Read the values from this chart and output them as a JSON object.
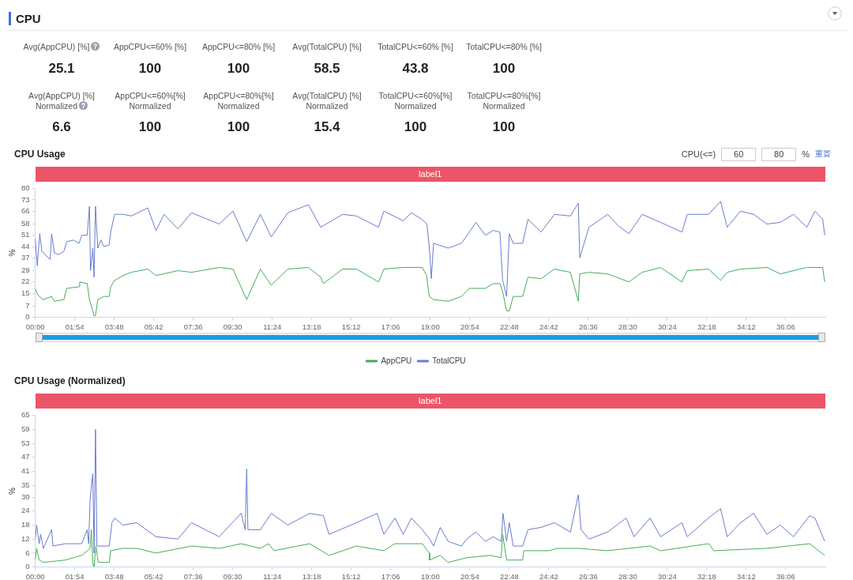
{
  "chart_data": [
    {
      "type": "other",
      "title": "CPU",
      "categories": [
        "Avg(AppCPU) [%]",
        "AppCPU<=60% [%]",
        "AppCPU<=80% [%]",
        "Avg(TotalCPU) [%]",
        "TotalCPU<=60% [%]",
        "TotalCPU<=80% [%]",
        "Avg(AppCPU) [%]\nNormalized",
        "AppCPU<=60%[%]\nNormalized",
        "AppCPU<=80%[%]\nNormalized",
        "Avg(TotalCPU) [%]\nNormalized",
        "TotalCPU<=60%[%]\nNormalized",
        "TotalCPU<=80%[%]\nNormalized"
      ],
      "values": [
        25.1,
        100,
        100,
        58.5,
        43.8,
        100,
        6.6,
        100,
        100,
        15.4,
        100,
        100
      ],
      "data_labels": true
    },
    {
      "type": "line",
      "title": "CPU Usage",
      "ylabel": "%",
      "annotations": [
        "label1",
        "CPU(<=)",
        "60",
        "80",
        "%",
        "重置"
      ],
      "legend": "bottom",
      "marker": "none",
      "line_style": "solid",
      "xlim": [
        0,
        38
      ],
      "xticks": [
        {
          "value": 0,
          "label": "00:00"
        },
        {
          "value": 1.9,
          "label": "01:54"
        },
        {
          "value": 3.8,
          "label": "03:48"
        },
        {
          "value": 5.7,
          "label": "05:42"
        },
        {
          "value": 7.6,
          "label": "07:36"
        },
        {
          "value": 9.5,
          "label": "09:30"
        },
        {
          "value": 11.4,
          "label": "11:24"
        },
        {
          "value": 13.3,
          "label": "13:18"
        },
        {
          "value": 15.2,
          "label": "15:12"
        },
        {
          "value": 17.1,
          "label": "17:06"
        },
        {
          "value": 19,
          "label": "19:00"
        },
        {
          "value": 20.9,
          "label": "20:54"
        },
        {
          "value": 22.8,
          "label": "22:48"
        },
        {
          "value": 24.7,
          "label": "24:42"
        },
        {
          "value": 26.6,
          "label": "26:36"
        },
        {
          "value": 28.5,
          "label": "28:30"
        },
        {
          "value": 30.4,
          "label": "30:24"
        },
        {
          "value": 32.3,
          "label": "32:18"
        },
        {
          "value": 34.2,
          "label": "34:12"
        },
        {
          "value": 36.1,
          "label": "36:06"
        }
      ],
      "ylim": [
        0,
        80
      ],
      "yticks": [
        0,
        7,
        15,
        22,
        29,
        37,
        44,
        51,
        58,
        66,
        73,
        80
      ],
      "series": [
        {
          "name": "AppCPU",
          "color": "#41ad58",
          "x": [
            0,
            0.12,
            0.38,
            0.79,
            0.92,
            1.38,
            1.51,
            2.11,
            2.14,
            2.5,
            2.61,
            2.77,
            2.83,
            2.9,
            3.01,
            3.3,
            3.56,
            3.63,
            3.82,
            4.22,
            4.62,
            5.41,
            5.81,
            6.86,
            7.52,
            8.85,
            9.51,
            10.17,
            10.83,
            11.35,
            12.15,
            13.14,
            13.73,
            13.86,
            14.79,
            15.45,
            16.51,
            16.77,
            17.7,
            18.62,
            18.82,
            18.95,
            19.16,
            19.86,
            20.5,
            20.88,
            21.65,
            22.03,
            22.35,
            22.48,
            22.67,
            22.8,
            22.99,
            23.44,
            23.7,
            24.33,
            24.97,
            25.74,
            26.12,
            26.19,
            26.63,
            27.53,
            28.55,
            29.19,
            30.08,
            31.1,
            31.36,
            32.38,
            32.96,
            33.28,
            33.92,
            35.19,
            35.83,
            37.11,
            37.87,
            37.97
          ],
          "values": [
            18,
            14,
            11,
            13,
            10,
            11,
            18,
            19,
            22,
            21,
            11,
            4,
            1,
            1,
            11,
            13,
            13,
            19,
            23,
            26,
            28,
            30,
            26,
            29,
            28,
            31,
            30,
            11,
            30,
            20,
            30,
            31,
            25,
            21,
            30,
            30,
            22,
            30,
            31,
            31,
            26,
            13,
            11,
            10,
            13,
            18,
            18,
            21,
            21,
            16,
            4,
            4,
            13,
            13,
            25,
            24,
            30,
            28,
            10,
            27,
            28,
            27,
            22,
            28,
            31,
            22,
            29,
            30,
            23,
            28,
            30,
            31,
            27,
            31,
            31,
            22
          ]
        },
        {
          "name": "TotalCPU",
          "color": "#6a7bcf",
          "x": [
            0,
            0.1,
            0.22,
            0.32,
            0.72,
            0.79,
            0.92,
            1.12,
            1.38,
            1.51,
            1.84,
            2.11,
            2.24,
            2.5,
            2.61,
            2.66,
            2.77,
            2.83,
            2.9,
            3.01,
            3.16,
            3.3,
            3.56,
            3.63,
            3.82,
            4.22,
            4.62,
            5.41,
            5.81,
            6.2,
            6.86,
            7.52,
            8.85,
            9.51,
            10.17,
            10.83,
            11.35,
            12.15,
            13.14,
            13.73,
            14.79,
            15.45,
            16.51,
            16.77,
            17.7,
            18.09,
            18.58,
            18.84,
            18.97,
            19.05,
            19.16,
            19.86,
            20.5,
            20.88,
            21.2,
            21.65,
            22.03,
            22.35,
            22.48,
            22.67,
            22.8,
            22.99,
            23.44,
            23.7,
            24.33,
            24.97,
            25.74,
            26.12,
            26.19,
            26.63,
            27.53,
            28.04,
            28.55,
            29.19,
            30.08,
            31.1,
            31.36,
            32.38,
            32.96,
            33.28,
            33.92,
            34.55,
            35.19,
            35.83,
            36.47,
            37.11,
            37.5,
            37.87,
            37.97
          ],
          "values": [
            49,
            32,
            52,
            41,
            36,
            52,
            40,
            39,
            41,
            47,
            48,
            46,
            51,
            51,
            69,
            29,
            43,
            25,
            69,
            43,
            48,
            44,
            45,
            53,
            64,
            64,
            63,
            68,
            54,
            64,
            55,
            65,
            58,
            66,
            47,
            64,
            50,
            65,
            70,
            56,
            64,
            63,
            56,
            66,
            60,
            65,
            61,
            58,
            41,
            24,
            46,
            43,
            46,
            53,
            59,
            51,
            54,
            53,
            23,
            13,
            52,
            46,
            46,
            61,
            53,
            64,
            63,
            71,
            37,
            56,
            64,
            57,
            52,
            64,
            59,
            53,
            64,
            64,
            72,
            56,
            66,
            64,
            58,
            59,
            64,
            56,
            66,
            61,
            51
          ]
        }
      ]
    },
    {
      "type": "line",
      "title": "CPU Usage (Normalized)",
      "ylabel": "%",
      "annotations": [
        "label1"
      ],
      "marker": "none",
      "line_style": "solid",
      "xlim": [
        0,
        38
      ],
      "xticks": [
        {
          "value": 0,
          "label": "00:00"
        },
        {
          "value": 1.9,
          "label": "01:54"
        },
        {
          "value": 3.8,
          "label": "03:48"
        },
        {
          "value": 5.7,
          "label": "05:42"
        },
        {
          "value": 7.6,
          "label": "07:36"
        },
        {
          "value": 9.5,
          "label": "09:30"
        },
        {
          "value": 11.4,
          "label": "11:24"
        },
        {
          "value": 13.3,
          "label": "13:18"
        },
        {
          "value": 15.2,
          "label": "15:12"
        },
        {
          "value": 17.1,
          "label": "17:06"
        },
        {
          "value": 19,
          "label": "19:00"
        },
        {
          "value": 20.9,
          "label": "20:54"
        },
        {
          "value": 22.8,
          "label": "22:48"
        },
        {
          "value": 24.7,
          "label": "24:42"
        },
        {
          "value": 26.6,
          "label": "26:36"
        },
        {
          "value": 28.5,
          "label": "28:30"
        },
        {
          "value": 30.4,
          "label": "30:24"
        },
        {
          "value": 32.3,
          "label": "32:18"
        },
        {
          "value": 34.2,
          "label": "34:12"
        },
        {
          "value": 36.1,
          "label": "36:06"
        }
      ],
      "ylim": [
        0,
        65
      ],
      "yticks": [
        0,
        6,
        12,
        18,
        24,
        30,
        35,
        41,
        47,
        53,
        59,
        65
      ],
      "series": [
        {
          "color": "#41ad58",
          "x": [
            0,
            0.07,
            0.19,
            0.39,
            1.45,
            2.24,
            2.64,
            2.7,
            2.77,
            2.83,
            2.92,
            3.03,
            3.56,
            3.63,
            4.22,
            4.88,
            5.81,
            7.52,
            8.85,
            9.9,
            10.83,
            11.22,
            11.49,
            13.2,
            14.13,
            15.45,
            16.77,
            17.3,
            18.62,
            18.95,
            18.97,
            19.48,
            19.86,
            20.75,
            21.9,
            22.41,
            22.48,
            22.67,
            23.44,
            23.5,
            24.72,
            25.1,
            26.12,
            27.53,
            29.57,
            30.08,
            32.38,
            32.64,
            35.19,
            37.24,
            37.97
          ],
          "values": [
            3,
            8,
            3,
            2,
            3,
            5,
            8,
            16,
            2,
            0,
            9,
            2,
            2,
            7,
            8,
            8,
            6,
            9,
            8,
            10,
            8,
            10,
            7,
            10,
            5,
            9,
            7,
            10,
            10,
            6,
            3,
            5,
            2,
            4,
            5,
            4,
            14,
            3,
            3,
            7,
            7,
            8,
            8,
            7,
            9,
            7,
            10,
            7,
            8,
            10,
            5
          ]
        },
        {
          "color": "#6a7bcf",
          "x": [
            0,
            0.07,
            0.19,
            0.26,
            0.39,
            0.79,
            0.85,
            1.45,
            2.24,
            2.5,
            2.57,
            2.64,
            2.72,
            2.77,
            2.83,
            2.9,
            2.97,
            3.56,
            3.69,
            3.82,
            4.22,
            4.88,
            5.81,
            6.86,
            7.52,
            8.85,
            9.9,
            10.1,
            10.17,
            10.23,
            10.83,
            11.35,
            12.15,
            13.2,
            13.86,
            14.13,
            15.45,
            16.44,
            16.77,
            17.3,
            17.7,
            18.09,
            18.62,
            18.97,
            19.16,
            19.48,
            19.86,
            20.5,
            20.75,
            21.2,
            21.65,
            22.03,
            22.41,
            22.5,
            22.67,
            22.8,
            22.99,
            23.44,
            23.7,
            24.33,
            24.97,
            25.74,
            26.12,
            26.25,
            26.63,
            27.53,
            28.42,
            28.8,
            29.57,
            30.08,
            31.1,
            31.36,
            32.38,
            32.96,
            33.28,
            33.92,
            34.55,
            35.19,
            35.83,
            36.47,
            37.24,
            37.5,
            37.97
          ],
          "values": [
            12,
            18,
            10,
            14,
            8,
            16,
            9,
            10,
            10,
            16,
            10,
            29,
            36,
            40,
            6,
            59,
            9,
            9,
            19,
            21,
            18,
            19,
            13,
            12,
            19,
            13,
            23,
            16,
            42,
            16,
            16,
            23,
            18,
            23,
            22,
            14,
            19,
            23,
            14,
            21,
            14,
            21,
            16,
            12,
            9,
            17,
            11,
            9,
            12,
            15,
            11,
            13,
            11,
            23,
            11,
            19,
            9,
            9,
            16,
            17,
            19,
            15,
            31,
            16,
            12,
            15,
            21,
            13,
            21,
            13,
            19,
            13,
            21,
            25,
            13,
            19,
            23,
            14,
            18,
            13,
            22,
            21,
            11
          ]
        }
      ]
    }
  ]
}
